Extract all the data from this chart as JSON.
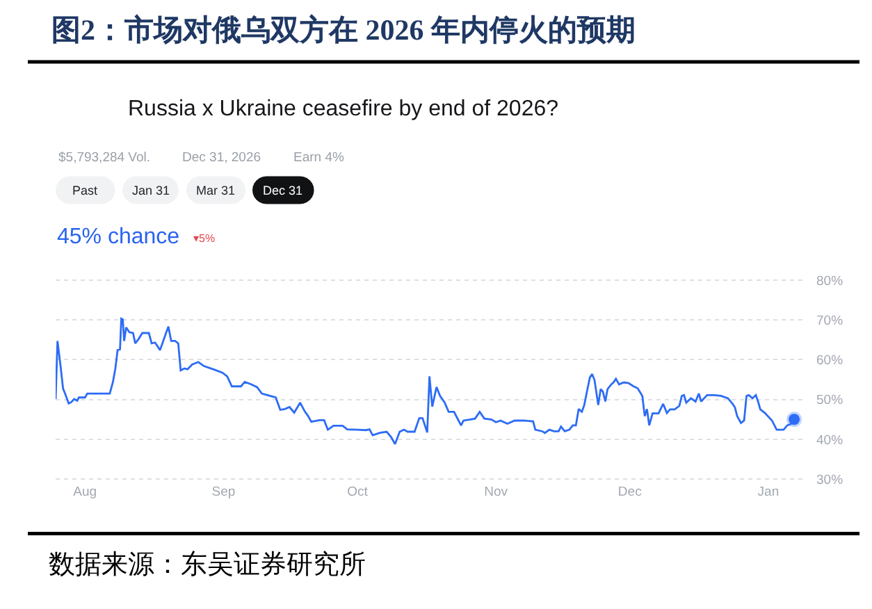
{
  "chart_data": {
    "type": "line",
    "title": "图2：市场对俄乌双方在 2026 年内停火的预期",
    "subtitle": "Russia x Ukraine ceasefire by end of 2026?",
    "annotations": [
      "$5,793,284 Vol.",
      "Dec 31, 2026",
      "Earn 4%",
      "Past",
      "Jan 31",
      "Mar 31",
      "Dec 31",
      "45% chance",
      "▾5%",
      "数据来源：东吴证券研究所"
    ],
    "xlim": [
      "2025-07-25T10:00",
      "2026-01-09T14:00"
    ],
    "xticks": [
      {
        "value": "2025-08-01",
        "label": "Aug"
      },
      {
        "value": "2025-09-01",
        "label": "Sep"
      },
      {
        "value": "2025-10-01",
        "label": "Oct"
      },
      {
        "value": "2025-11-01",
        "label": "Nov"
      },
      {
        "value": "2025-12-01",
        "label": "Dec"
      },
      {
        "value": "2026-01-01",
        "label": "Jan"
      }
    ],
    "ylim": [
      29.5,
      80.5
    ],
    "yticks": [
      {
        "value": 30,
        "label": "30%"
      },
      {
        "value": 40,
        "label": "40%"
      },
      {
        "value": 50,
        "label": "50%"
      },
      {
        "value": 60,
        "label": "60%"
      },
      {
        "value": 70,
        "label": "70%"
      },
      {
        "value": 80,
        "label": "80%"
      }
    ],
    "grid": "y",
    "series": [
      {
        "color": "#2d6cf5",
        "x": [
          "2025-07-25T10:00",
          "2025-07-25T20:00",
          "2025-07-26T11:00",
          "2025-07-27T02:00",
          "2025-07-27T12:00",
          "2025-07-28T08:00",
          "2025-07-28T21:00",
          "2025-07-29T14:00",
          "2025-07-30T06:00",
          "2025-07-30T15:00",
          "2025-08-01T00:00",
          "2025-08-01T12:00",
          "2025-08-06T13:00",
          "2025-08-07T06:00",
          "2025-08-07T19:00",
          "2025-08-08T07:00",
          "2025-08-08T20:00",
          "2025-08-09T03:00",
          "2025-08-09T11:00",
          "2025-08-09T18:00",
          "2025-08-10T05:00",
          "2025-08-10T22:00",
          "2025-08-11T18:00",
          "2025-08-12T06:00",
          "2025-08-13T00:00",
          "2025-08-13T20:00",
          "2025-08-15T07:00",
          "2025-08-15T22:00",
          "2025-08-16T16:00",
          "2025-08-17T04:00",
          "2025-08-17T19:00",
          "2025-08-18T10:00",
          "2025-08-19T01:00",
          "2025-08-19T16:00",
          "2025-08-20T07:00",
          "2025-08-21T04:00",
          "2025-08-21T21:00",
          "2025-08-22T10:00",
          "2025-08-23T06:00",
          "2025-08-23T23:00",
          "2025-08-25T00:00",
          "2025-08-26T09:00",
          "2025-08-27T15:00",
          "2025-08-29T17:00",
          "2025-08-31T19:00",
          "2025-09-01T20:00",
          "2025-09-02T21:00",
          "2025-09-04T22:00",
          "2025-09-05T18:00",
          "2025-09-07T00:00",
          "2025-09-08T13:00",
          "2025-09-09T14:00",
          "2025-09-11T03:00",
          "2025-09-12T17:00",
          "2025-09-13T17:00",
          "2025-09-14T18:00",
          "2025-09-15T19:00",
          "2025-09-16T20:00",
          "2025-09-18T04:00",
          "2025-09-19T05:00",
          "2025-09-19T22:00",
          "2025-09-20T16:00",
          "2025-09-22T12:00",
          "2025-09-23T13:00",
          "2025-09-24T09:00",
          "2025-09-25T15:00",
          "2025-09-27T16:00",
          "2025-09-28T17:00",
          "2025-10-01T00:00",
          "2025-10-02T21:00",
          "2025-10-03T17:00",
          "2025-10-04T10:00",
          "2025-10-06T00:00",
          "2025-10-07T13:00",
          "2025-10-08T14:00",
          "2025-10-09T10:00",
          "2025-10-10T11:00",
          "2025-10-11T10:00",
          "2025-10-12T06:00",
          "2025-10-13T19:00",
          "2025-10-14T20:00",
          "2025-10-15T14:00",
          "2025-10-16T15:00",
          "2025-10-17T03:00",
          "2025-10-17T18:00",
          "2025-10-18T17:00",
          "2025-10-19T12:00",
          "2025-10-20T13:00",
          "2025-10-21T10:00",
          "2025-10-22T15:00",
          "2025-10-23T12:00",
          "2025-10-24T05:00",
          "2025-10-24T18:00",
          "2025-10-26T07:00",
          "2025-10-27T08:00",
          "2025-10-28T09:00",
          "2025-10-29T10:00",
          "2025-10-30T23:00",
          "2025-11-01T00:00",
          "2025-11-02T01:00",
          "2025-11-03T14:00",
          "2025-11-05T04:00",
          "2025-11-07T06:00",
          "2025-11-09T08:00",
          "2025-11-09T20:00",
          "2025-11-11T10:00",
          "2025-11-11T23:00",
          "2025-11-13T00:00",
          "2025-11-14T00:00",
          "2025-11-15T01:00",
          "2025-11-15T14:00",
          "2025-11-16T10:00",
          "2025-11-17T11:00",
          "2025-11-18T05:00",
          "2025-11-18T22:00",
          "2025-11-19T13:00",
          "2025-11-20T06:00",
          "2025-11-20T19:00",
          "2025-11-21T12:00",
          "2025-11-22T01:00",
          "2025-11-22T13:00",
          "2025-11-23T02:00",
          "2025-11-23T22:00",
          "2025-11-24T11:00",
          "2025-11-24T23:00",
          "2025-11-25T12:00",
          "2025-11-26T00:00",
          "2025-11-26T20:00",
          "2025-11-27T08:00",
          "2025-11-27T21:00",
          "2025-11-28T14:00",
          "2025-11-29T16:00",
          "2025-11-30T17:00",
          "2025-12-01T17:00",
          "2025-12-02T18:00",
          "2025-12-03T19:00",
          "2025-12-04T08:00",
          "2025-12-04T20:00",
          "2025-12-05T08:00",
          "2025-12-06T02:00",
          "2025-12-07T10:00",
          "2025-12-08T11:00",
          "2025-12-09T07:00",
          "2025-12-10T00:00",
          "2025-12-11T01:00",
          "2025-12-12T02:00",
          "2025-12-12T15:00",
          "2025-12-13T03:00",
          "2025-12-13T15:00",
          "2025-12-14T16:00",
          "2025-12-15T17:00",
          "2025-12-16T11:00",
          "2025-12-16T23:00",
          "2025-12-18T07:00",
          "2025-12-19T21:00",
          "2025-12-21T10:00",
          "2025-12-22T23:00",
          "2025-12-24T00:00",
          "2025-12-24T12:00",
          "2025-12-25T01:00",
          "2025-12-25T21:00",
          "2025-12-26T14:00",
          "2025-12-27T03:00",
          "2025-12-27T15:00",
          "2025-12-28T11:00",
          "2025-12-29T05:00",
          "2025-12-29T17:00",
          "2025-12-30T05:00",
          "2025-12-31T06:00",
          "2026-01-01T20:00",
          "2026-01-02T21:00",
          "2026-01-04T10:00",
          "2026-01-05T06:00",
          "2026-01-05T23:00",
          "2026-01-06T19:00"
        ],
        "values": [
          50.1,
          64.7,
          59,
          52.7,
          51.6,
          49,
          49.3,
          50.1,
          49.7,
          50.5,
          50.5,
          51.5,
          51.5,
          54.4,
          57.8,
          62.4,
          62.6,
          70.3,
          70.1,
          64.7,
          68.1,
          66.9,
          66.7,
          64.1,
          65.2,
          66.7,
          66.7,
          64.1,
          64.3,
          63.5,
          62.4,
          64.4,
          66.4,
          68.3,
          64.7,
          64.7,
          64.1,
          57.3,
          57.8,
          57.6,
          58.8,
          59.4,
          58.4,
          57.6,
          56.7,
          55.8,
          53.3,
          53.3,
          54.4,
          53.9,
          53.1,
          51.5,
          51,
          50.5,
          47.4,
          47.6,
          48.1,
          46.7,
          49.2,
          47,
          45.9,
          44.4,
          44.8,
          44.8,
          42.4,
          43.4,
          43.4,
          42.5,
          42.4,
          42.3,
          42.5,
          41,
          41.6,
          41.9,
          40.5,
          38.8,
          41.9,
          42.4,
          41.9,
          41.9,
          45.3,
          45.3,
          41.7,
          55.8,
          48.2,
          53.1,
          50.9,
          49.2,
          46.9,
          46.9,
          45,
          43.5,
          44.7,
          45,
          45.2,
          46.9,
          45.2,
          45,
          44.3,
          44.7,
          43.9,
          44.7,
          44.7,
          44.5,
          42.4,
          42,
          41.6,
          42.4,
          42,
          42,
          43.2,
          42,
          42.4,
          43.5,
          43.5,
          47.6,
          46.9,
          48.6,
          52.6,
          55.5,
          56.4,
          54.9,
          48.6,
          52.6,
          52,
          49.5,
          52.6,
          53.8,
          54.3,
          55.2,
          53.8,
          54.3,
          54.1,
          53.4,
          52.8,
          50.9,
          45.8,
          47.6,
          43.5,
          46.5,
          46.5,
          48.9,
          46.6,
          47.5,
          47.5,
          48.4,
          50.9,
          51.1,
          49.2,
          50.3,
          49.5,
          51.5,
          49.5,
          51.1,
          51.1,
          50.9,
          50.3,
          48.9,
          48.1,
          45.8,
          44.1,
          44.7,
          50.9,
          51.1,
          50.3,
          51.1,
          49.5,
          47.5,
          46.6,
          44.7,
          42.4,
          42.4,
          43.5,
          43.8,
          45
        ]
      },
      {
        "type": "scatter",
        "color": "#2d6cf5",
        "marker": "circle",
        "x": [
          "2026-01-06T19:00"
        ],
        "values": [
          45
        ]
      }
    ]
  }
}
